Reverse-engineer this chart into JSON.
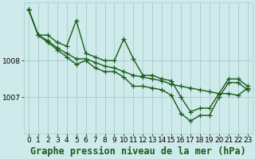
{
  "background_color": "#ceeaea",
  "grid_color": "#a8cccc",
  "line_color": "#1a5c1a",
  "marker_color": "#1a5c1a",
  "xlabel": "Graphe pression niveau de la mer (hPa)",
  "xlim": [
    -0.5,
    23.5
  ],
  "ylim": [
    1006.0,
    1009.6
  ],
  "yticks": [
    1007,
    1008
  ],
  "series": [
    [
      1009.4,
      1008.7,
      1008.7,
      1008.5,
      1008.4,
      1009.1,
      1008.2,
      1008.1,
      1008.0,
      1008.0,
      1008.6,
      1008.05,
      1007.6,
      1007.6,
      1007.5,
      1007.45,
      1007.0,
      1006.6,
      1006.7,
      1006.7,
      1007.1,
      1007.5,
      1007.5,
      1007.3
    ],
    [
      1009.4,
      1008.7,
      1008.55,
      1008.35,
      1008.2,
      1008.05,
      1008.05,
      1007.95,
      1007.85,
      1007.8,
      1007.7,
      1007.6,
      1007.55,
      1007.5,
      1007.45,
      1007.35,
      1007.3,
      1007.25,
      1007.2,
      1007.15,
      1007.1,
      1007.1,
      1007.05,
      1007.25
    ],
    [
      1009.4,
      1008.7,
      1008.5,
      1008.3,
      1008.1,
      1007.9,
      1008.0,
      1007.8,
      1007.7,
      1007.7,
      1007.55,
      1007.3,
      1007.3,
      1007.25,
      1007.2,
      1007.05,
      1006.55,
      1006.35,
      1006.5,
      1006.5,
      1007.0,
      1007.4,
      1007.4,
      1007.2
    ]
  ],
  "title_fontsize": 8.5,
  "tick_fontsize": 6.5,
  "linewidth": 1.0,
  "markersize": 4,
  "markeredgewidth": 0.9
}
